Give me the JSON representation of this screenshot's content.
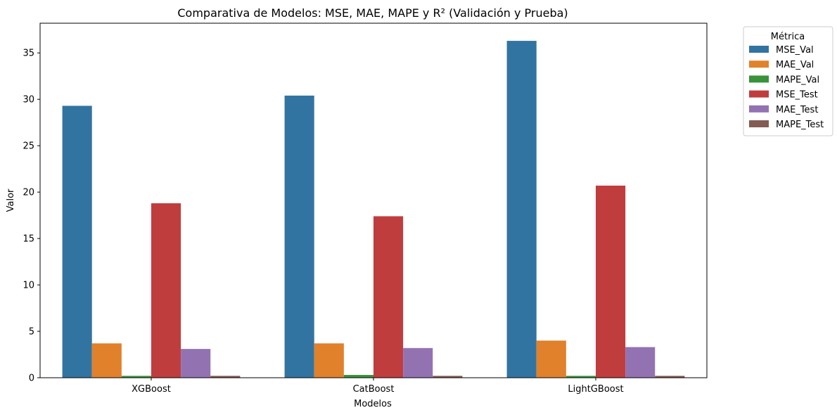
{
  "chart_data": {
    "type": "bar",
    "title": "Comparativa de Modelos: MSE, MAE, MAPE y R² (Validación y Prueba)",
    "xlabel": "Modelos",
    "ylabel": "Valor",
    "ylim": [
      0,
      38.2
    ],
    "yticks": [
      0,
      5,
      10,
      15,
      20,
      25,
      30,
      35
    ],
    "grid": false,
    "legend": {
      "title": "Métrica",
      "placement": "outside-right"
    },
    "categories": [
      "XGBoost",
      "CatBoost",
      "LightGBoost"
    ],
    "series": [
      {
        "name": "MSE_Val",
        "color": "#3274a1",
        "values": [
          29.3,
          30.4,
          36.3
        ]
      },
      {
        "name": "MAE_Val",
        "color": "#e1812c",
        "values": [
          3.7,
          3.7,
          4.0
        ]
      },
      {
        "name": "MAPE_Val",
        "color": "#3a923a",
        "values": [
          0.2,
          0.3,
          0.2
        ]
      },
      {
        "name": "MSE_Test",
        "color": "#c03d3e",
        "values": [
          18.8,
          17.4,
          20.7
        ]
      },
      {
        "name": "MAE_Test",
        "color": "#9372b2",
        "values": [
          3.1,
          3.2,
          3.3
        ]
      },
      {
        "name": "MAPE_Test",
        "color": "#845b53",
        "values": [
          0.2,
          0.2,
          0.2
        ]
      }
    ]
  }
}
